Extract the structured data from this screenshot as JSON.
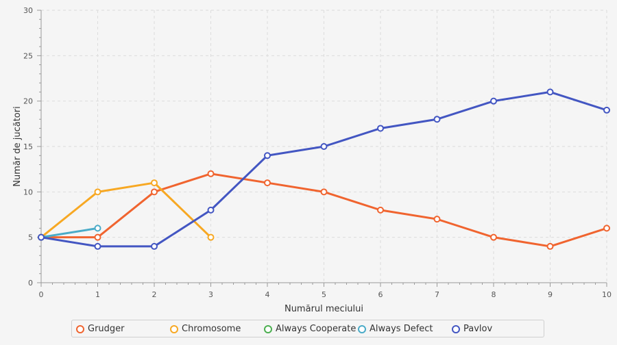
{
  "chart_data": {
    "type": "line",
    "title": "",
    "xlabel": "Numărul meciului",
    "ylabel": "Număr de jucători",
    "xlim": [
      0,
      10
    ],
    "ylim": [
      0,
      30
    ],
    "x_ticks": [
      0,
      1,
      2,
      3,
      4,
      5,
      6,
      7,
      8,
      9,
      10
    ],
    "y_ticks": [
      0,
      5,
      10,
      15,
      20,
      25,
      30
    ],
    "grid": true,
    "legend_position": "bottom",
    "series": [
      {
        "name": "Grudger",
        "color": "#f0642f",
        "x": [
          0,
          1,
          2,
          3,
          4,
          5,
          6,
          7,
          8,
          9,
          10
        ],
        "values": [
          5,
          5,
          10,
          12,
          11,
          10,
          8,
          7,
          5,
          4,
          6
        ]
      },
      {
        "name": "Chromosome",
        "color": "#f7a823",
        "x": [
          0,
          1,
          2,
          3
        ],
        "values": [
          5,
          10,
          11,
          5
        ]
      },
      {
        "name": "Always Cooperate",
        "color": "#4caf50",
        "x": [],
        "values": []
      },
      {
        "name": "Always Defect",
        "color": "#4aabc8",
        "x": [
          0,
          1
        ],
        "values": [
          5,
          6
        ]
      },
      {
        "name": "Pavlov",
        "color": "#4356c2",
        "x": [
          0,
          1,
          2,
          3,
          4,
          5,
          6,
          7,
          8,
          9,
          10
        ],
        "values": [
          5,
          4,
          4,
          8,
          14,
          15,
          17,
          18,
          20,
          21,
          19
        ]
      }
    ]
  }
}
